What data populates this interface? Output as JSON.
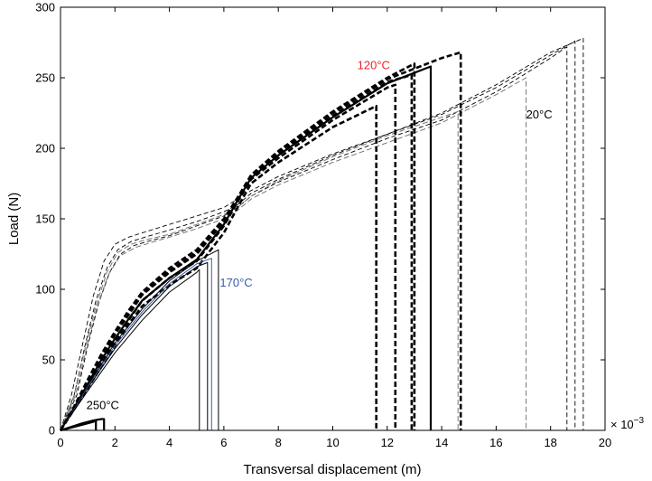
{
  "chart_data": {
    "type": "line",
    "title": "",
    "xlabel": "Transversal displacement (m)",
    "ylabel": "Load (N)",
    "x_multiplier_label": "× 10",
    "x_multiplier_exponent": "−3",
    "xlim": [
      0,
      20
    ],
    "ylim": [
      0,
      300
    ],
    "xticks": [
      0,
      2,
      4,
      6,
      8,
      10,
      12,
      14,
      16,
      18,
      20
    ],
    "yticks": [
      0,
      50,
      100,
      150,
      200,
      250,
      300
    ],
    "grid": false,
    "legend": "none",
    "annotations": [
      {
        "text": "120°C",
        "x": 10.9,
        "y": 256,
        "color": "#e8262b"
      },
      {
        "text": "20°C",
        "x": 17.1,
        "y": 221,
        "color": "#000000"
      },
      {
        "text": "170°C",
        "x": 5.85,
        "y": 102,
        "color": "#3a5ca8"
      },
      {
        "text": "250°C",
        "x": 0.95,
        "y": 15,
        "color": "#000000"
      }
    ],
    "series": [
      {
        "group": "20°C",
        "style": "thin-dashed",
        "color": "#000000",
        "points": [
          [
            0,
            0
          ],
          [
            0.4,
            25
          ],
          [
            0.8,
            60
          ],
          [
            1.2,
            95
          ],
          [
            1.6,
            120
          ],
          [
            2,
            132
          ],
          [
            2.5,
            137
          ],
          [
            3,
            140
          ],
          [
            4,
            146
          ],
          [
            5,
            152
          ],
          [
            6,
            158
          ],
          [
            6.5,
            164
          ],
          [
            7,
            170
          ],
          [
            8,
            180
          ],
          [
            10,
            196
          ],
          [
            12,
            210
          ],
          [
            14,
            225
          ],
          [
            16,
            245
          ],
          [
            18,
            268
          ],
          [
            19.2,
            278
          ],
          [
            19.2,
            0
          ]
        ]
      },
      {
        "group": "20°C",
        "style": "thin-dashed",
        "color": "#000000",
        "points": [
          [
            0,
            0
          ],
          [
            0.5,
            25
          ],
          [
            0.9,
            60
          ],
          [
            1.3,
            92
          ],
          [
            1.7,
            115
          ],
          [
            2.1,
            128
          ],
          [
            2.6,
            134
          ],
          [
            3.1,
            137
          ],
          [
            4,
            142
          ],
          [
            5,
            148
          ],
          [
            6,
            155
          ],
          [
            6.5,
            160
          ],
          [
            7,
            168
          ],
          [
            8,
            178
          ],
          [
            10,
            195
          ],
          [
            12,
            210
          ],
          [
            14,
            224
          ],
          [
            16,
            243
          ],
          [
            18,
            266
          ],
          [
            18.9,
            276
          ],
          [
            18.9,
            0
          ]
        ]
      },
      {
        "group": "20°C",
        "style": "thin-dashed",
        "color": "#000000",
        "points": [
          [
            0,
            0
          ],
          [
            0.6,
            25
          ],
          [
            1.0,
            60
          ],
          [
            1.4,
            90
          ],
          [
            1.8,
            112
          ],
          [
            2.2,
            125
          ],
          [
            2.7,
            131
          ],
          [
            3.2,
            134
          ],
          [
            4,
            138
          ],
          [
            5,
            145
          ],
          [
            6,
            152
          ],
          [
            6.5,
            158
          ],
          [
            7,
            166
          ],
          [
            8,
            176
          ],
          [
            10,
            192
          ],
          [
            12,
            207
          ],
          [
            14,
            220
          ],
          [
            16,
            240
          ],
          [
            18,
            264
          ],
          [
            18.6,
            272
          ],
          [
            18.6,
            0
          ]
        ]
      },
      {
        "group": "20°C",
        "style": "gray-dashed",
        "color": "#777777",
        "points": [
          [
            0,
            0
          ],
          [
            0.55,
            25
          ],
          [
            0.95,
            58
          ],
          [
            1.35,
            88
          ],
          [
            1.75,
            110
          ],
          [
            2.2,
            124
          ],
          [
            2.8,
            130
          ],
          [
            3.3,
            133
          ],
          [
            4,
            137
          ],
          [
            5,
            143
          ],
          [
            6,
            150
          ],
          [
            6.5,
            156
          ],
          [
            7,
            164
          ],
          [
            8,
            174
          ],
          [
            10,
            190
          ],
          [
            12,
            204
          ],
          [
            14,
            218
          ],
          [
            16,
            238
          ],
          [
            17.1,
            250
          ],
          [
            17.1,
            0
          ]
        ]
      },
      {
        "group": "20°C",
        "style": "gray-dashed",
        "color": "#777777",
        "points": [
          [
            0,
            0
          ],
          [
            0.5,
            25
          ],
          [
            0.9,
            58
          ],
          [
            1.3,
            88
          ],
          [
            1.7,
            112
          ],
          [
            2.1,
            126
          ],
          [
            2.6,
            132
          ],
          [
            3.1,
            135
          ],
          [
            4,
            139
          ],
          [
            5,
            146
          ],
          [
            6,
            153
          ],
          [
            6.5,
            158
          ],
          [
            7,
            166
          ],
          [
            8,
            177
          ],
          [
            10,
            194
          ],
          [
            12,
            209
          ],
          [
            14,
            222
          ],
          [
            14.6,
            226
          ],
          [
            14.6,
            0
          ]
        ]
      },
      {
        "group": "120°C",
        "style": "thick-dashed",
        "color": "#000000",
        "points": [
          [
            0,
            0
          ],
          [
            0.5,
            15
          ],
          [
            1,
            30
          ],
          [
            1.5,
            45
          ],
          [
            2,
            60
          ],
          [
            2.5,
            75
          ],
          [
            3,
            88
          ],
          [
            4,
            103
          ],
          [
            5,
            115
          ],
          [
            6,
            140
          ],
          [
            6.5,
            158
          ],
          [
            7,
            175
          ],
          [
            8,
            190
          ],
          [
            10,
            215
          ],
          [
            11.6,
            230
          ],
          [
            11.6,
            0
          ]
        ]
      },
      {
        "group": "120°C",
        "style": "thick-dashed",
        "color": "#000000",
        "points": [
          [
            0,
            0
          ],
          [
            0.5,
            15
          ],
          [
            1,
            32
          ],
          [
            1.5,
            48
          ],
          [
            2,
            63
          ],
          [
            2.5,
            78
          ],
          [
            3,
            92
          ],
          [
            4,
            108
          ],
          [
            5,
            120
          ],
          [
            6,
            145
          ],
          [
            6.5,
            162
          ],
          [
            7,
            178
          ],
          [
            8,
            193
          ],
          [
            10,
            220
          ],
          [
            12,
            243
          ],
          [
            12.3,
            245
          ],
          [
            12.3,
            0
          ]
        ]
      },
      {
        "group": "120°C",
        "style": "thick-dashed",
        "color": "#000000",
        "points": [
          [
            0,
            0
          ],
          [
            0.5,
            16
          ],
          [
            1,
            34
          ],
          [
            1.5,
            52
          ],
          [
            2,
            68
          ],
          [
            2.5,
            82
          ],
          [
            3,
            96
          ],
          [
            4,
            112
          ],
          [
            5,
            125
          ],
          [
            6,
            148
          ],
          [
            6.5,
            164
          ],
          [
            7,
            180
          ],
          [
            8,
            196
          ],
          [
            10,
            223
          ],
          [
            12,
            247
          ],
          [
            12.9,
            252
          ],
          [
            12.9,
            0
          ]
        ]
      },
      {
        "group": "120°C",
        "style": "thick-dashed",
        "color": "#000000",
        "points": [
          [
            0,
            0
          ],
          [
            0.5,
            17
          ],
          [
            1,
            36
          ],
          [
            1.5,
            54
          ],
          [
            2,
            70
          ],
          [
            2.5,
            85
          ],
          [
            3,
            98
          ],
          [
            4,
            115
          ],
          [
            5,
            128
          ],
          [
            6,
            150
          ],
          [
            6.5,
            165
          ],
          [
            7,
            181
          ],
          [
            8,
            198
          ],
          [
            10,
            226
          ],
          [
            12,
            250
          ],
          [
            13.0,
            260
          ],
          [
            13.0,
            0
          ]
        ]
      },
      {
        "group": "120°C",
        "style": "thick-dashed",
        "color": "#000000",
        "points": [
          [
            0,
            0
          ],
          [
            0.5,
            16
          ],
          [
            1,
            35
          ],
          [
            1.5,
            53
          ],
          [
            2,
            69
          ],
          [
            2.5,
            84
          ],
          [
            3,
            97
          ],
          [
            4,
            113
          ],
          [
            5,
            126
          ],
          [
            6,
            149
          ],
          [
            6.5,
            164
          ],
          [
            7,
            180
          ],
          [
            8,
            197
          ],
          [
            10,
            225
          ],
          [
            12,
            249
          ],
          [
            14,
            264
          ],
          [
            14.7,
            268
          ],
          [
            14.7,
            0
          ]
        ]
      },
      {
        "group": "120°C",
        "style": "thick-solid",
        "color": "#000000",
        "points": [
          [
            0,
            0
          ],
          [
            0.5,
            16
          ],
          [
            1,
            33
          ],
          [
            1.5,
            50
          ],
          [
            2,
            65
          ],
          [
            2.5,
            79
          ],
          [
            3,
            92
          ],
          [
            4,
            108
          ],
          [
            5,
            121
          ],
          [
            6,
            146
          ],
          [
            6.5,
            163
          ],
          [
            7,
            179
          ],
          [
            8,
            195
          ],
          [
            10,
            222
          ],
          [
            12,
            246
          ],
          [
            13.6,
            258
          ],
          [
            13.6,
            0
          ]
        ]
      },
      {
        "group": "170°C",
        "style": "thin-solid",
        "color": "#000000",
        "points": [
          [
            0,
            0
          ],
          [
            1,
            28
          ],
          [
            2,
            55
          ],
          [
            3,
            78
          ],
          [
            4,
            98
          ],
          [
            5,
            112
          ],
          [
            5.1,
            114
          ],
          [
            5.1,
            0
          ]
        ]
      },
      {
        "group": "170°C",
        "style": "thin-solid",
        "color": "#000000",
        "points": [
          [
            0,
            0
          ],
          [
            1,
            30
          ],
          [
            2,
            58
          ],
          [
            3,
            82
          ],
          [
            4,
            102
          ],
          [
            5,
            116
          ],
          [
            5.4,
            119
          ],
          [
            5.4,
            0
          ]
        ]
      },
      {
        "group": "170°C",
        "style": "thin-solid",
        "color": "#3a5ca8",
        "points": [
          [
            0,
            0
          ],
          [
            1,
            31
          ],
          [
            2,
            60
          ],
          [
            3,
            84
          ],
          [
            4,
            104
          ],
          [
            5,
            118
          ],
          [
            5.55,
            122
          ],
          [
            5.55,
            0
          ]
        ]
      },
      {
        "group": "170°C",
        "style": "thin-solid",
        "color": "#000000",
        "points": [
          [
            0,
            0
          ],
          [
            1,
            32
          ],
          [
            2,
            62
          ],
          [
            3,
            86
          ],
          [
            4,
            106
          ],
          [
            5,
            120
          ],
          [
            5.8,
            128
          ],
          [
            5.8,
            0
          ]
        ]
      },
      {
        "group": "250°C",
        "style": "thick-solid",
        "color": "#000000",
        "points": [
          [
            0,
            0
          ],
          [
            0.4,
            2
          ],
          [
            0.8,
            4
          ],
          [
            1.2,
            6
          ],
          [
            1.3,
            7
          ],
          [
            1.3,
            0
          ]
        ]
      },
      {
        "group": "250°C",
        "style": "thick-solid",
        "color": "#000000",
        "points": [
          [
            0,
            0
          ],
          [
            0.4,
            2.5
          ],
          [
            0.8,
            5
          ],
          [
            1.2,
            7
          ],
          [
            1.5,
            8
          ],
          [
            1.6,
            8
          ],
          [
            1.6,
            0
          ]
        ]
      }
    ]
  }
}
